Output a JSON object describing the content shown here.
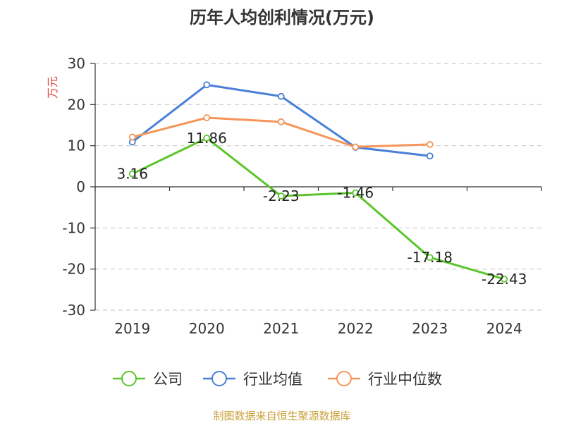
{
  "chart_data": {
    "type": "line",
    "title": "历年人均创利情况(万元)",
    "ylabel": "万元",
    "xlabel": "",
    "categories": [
      "2019",
      "2020",
      "2021",
      "2022",
      "2023",
      "2024"
    ],
    "ylim": [
      -30,
      30
    ],
    "yticks": [
      30,
      20,
      10,
      0,
      -10,
      -20,
      -30
    ],
    "ytick_labels": [
      "30",
      "20",
      "10",
      "0",
      "-10",
      "-20",
      "-30"
    ],
    "grid": true,
    "legend_position": "bottom",
    "series": [
      {
        "name": "公司",
        "color": "#5cc52b",
        "values": [
          3.16,
          11.86,
          -2.23,
          -1.46,
          -17.18,
          -22.43
        ],
        "labels": [
          "3.16",
          "11.86",
          "-2.23",
          "-1.46",
          "-17.18",
          "-22.43"
        ]
      },
      {
        "name": "行业均值",
        "color": "#4a7fd8",
        "values": [
          10.9,
          24.8,
          22.0,
          9.6,
          7.5,
          null
        ]
      },
      {
        "name": "行业中位数",
        "color": "#f5955a",
        "values": [
          12.1,
          16.8,
          15.8,
          9.7,
          10.3,
          null
        ]
      }
    ]
  },
  "source": "制图数据来自恒生聚源数据库"
}
